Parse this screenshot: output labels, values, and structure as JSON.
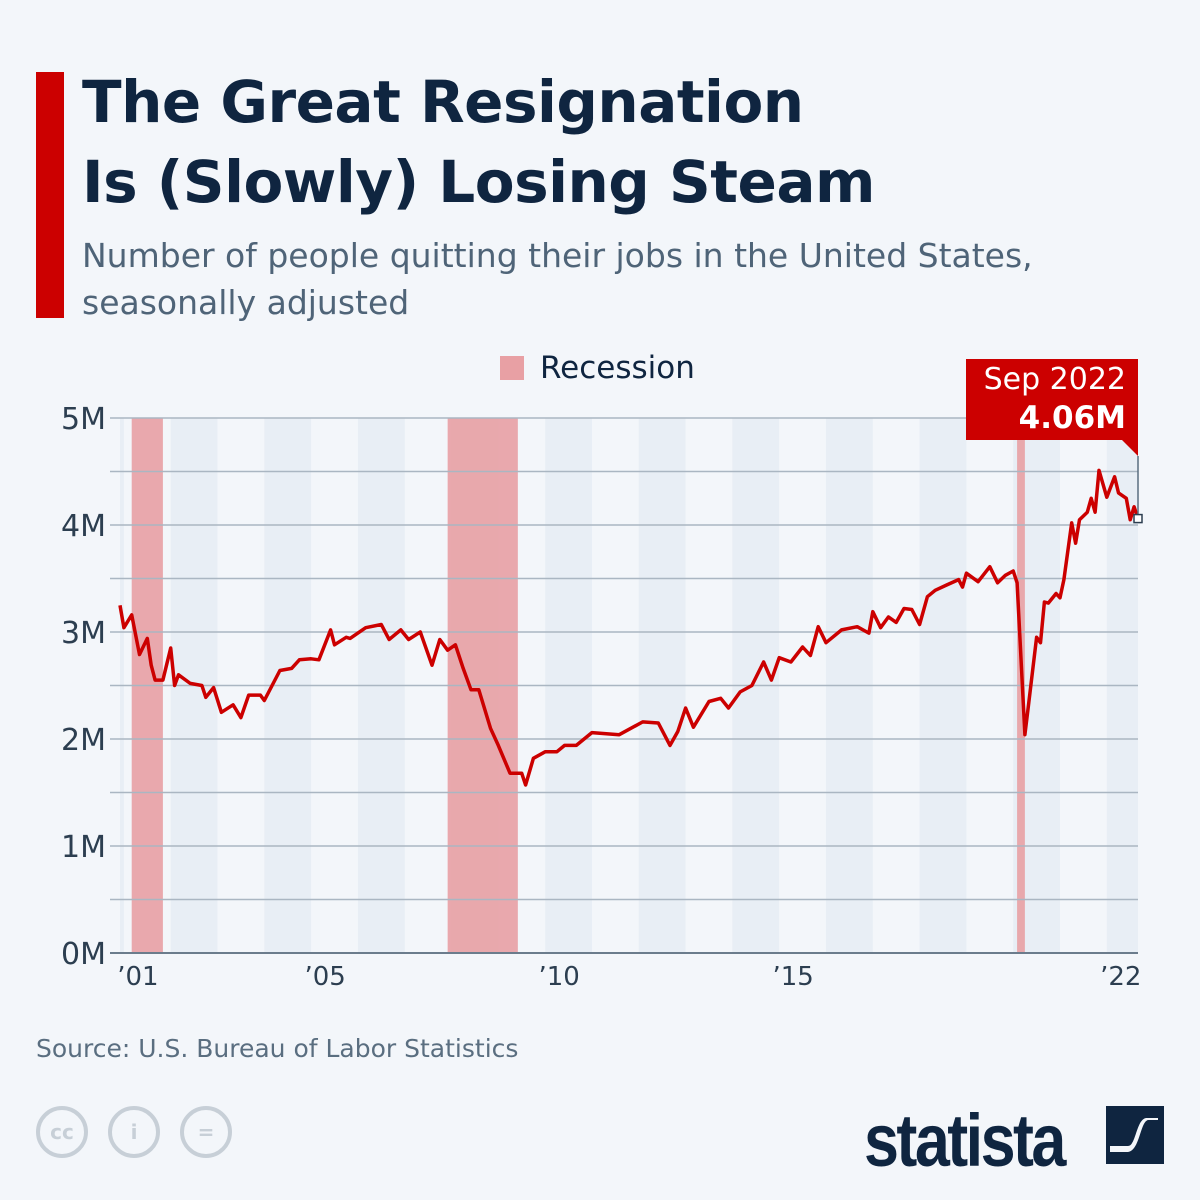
{
  "header": {
    "title_line1": "The Great Resignation",
    "title_line2": "Is (Slowly) Losing Steam",
    "subtitle_line1": "Number of people quitting their jobs in the United States,",
    "subtitle_line2": "seasonally adjusted"
  },
  "legend": {
    "recession_label": "Recession"
  },
  "callout": {
    "date": "Sep 2022",
    "value": "4.06M"
  },
  "footer": {
    "source": "Source: U.S. Bureau of Labor Statistics",
    "brand": "statista",
    "license_icons": [
      "cc-icon",
      "attribution-icon",
      "no-derivatives-icon"
    ]
  },
  "colors": {
    "accent": "#cc0000",
    "line": "#cc0000",
    "recession": "#e8a0a4",
    "title": "#0f2540",
    "stripe": "#e8eef5"
  },
  "chart_data": {
    "type": "line",
    "ylim": [
      0,
      5
    ],
    "yunit": "M",
    "yticks": [
      {
        "v": 0,
        "label": "0M"
      },
      {
        "v": 1,
        "label": "1M"
      },
      {
        "v": 2,
        "label": "2M"
      },
      {
        "v": 3,
        "label": "3M"
      },
      {
        "v": 4,
        "label": "4M"
      },
      {
        "v": 5,
        "label": "5M"
      }
    ],
    "xrange": [
      "2000-12",
      "2022-09"
    ],
    "xticks": [
      {
        "date": "2001-01",
        "label": "’01"
      },
      {
        "date": "2005-01",
        "label": "’05"
      },
      {
        "date": "2010-01",
        "label": "’10"
      },
      {
        "date": "2015-01",
        "label": "’15"
      },
      {
        "date": "2022-01",
        "label": "’22"
      }
    ],
    "grid": true,
    "alternate_year_shading": true,
    "legend_placement": "top",
    "recessions": [
      [
        "2001-03",
        "2001-11"
      ],
      [
        "2007-12",
        "2009-06"
      ],
      [
        "2020-02",
        "2020-04"
      ]
    ],
    "points": [
      [
        "2000-12",
        3.25
      ],
      [
        "2001-01",
        3.04
      ],
      [
        "2001-03",
        3.16
      ],
      [
        "2001-05",
        2.79
      ],
      [
        "2001-07",
        2.94
      ],
      [
        "2001-08",
        2.69
      ],
      [
        "2001-09",
        2.55
      ],
      [
        "2001-11",
        2.55
      ],
      [
        "2002-01",
        2.85
      ],
      [
        "2002-02",
        2.5
      ],
      [
        "2002-03",
        2.6
      ],
      [
        "2002-06",
        2.52
      ],
      [
        "2002-09",
        2.5
      ],
      [
        "2002-10",
        2.39
      ],
      [
        "2002-12",
        2.48
      ],
      [
        "2003-02",
        2.25
      ],
      [
        "2003-05",
        2.32
      ],
      [
        "2003-07",
        2.2
      ],
      [
        "2003-09",
        2.41
      ],
      [
        "2003-12",
        2.41
      ],
      [
        "2004-01",
        2.36
      ],
      [
        "2004-05",
        2.64
      ],
      [
        "2004-08",
        2.66
      ],
      [
        "2004-10",
        2.74
      ],
      [
        "2005-01",
        2.75
      ],
      [
        "2005-03",
        2.74
      ],
      [
        "2005-06",
        3.02
      ],
      [
        "2005-07",
        2.88
      ],
      [
        "2005-10",
        2.95
      ],
      [
        "2005-11",
        2.94
      ],
      [
        "2006-03",
        3.04
      ],
      [
        "2006-07",
        3.07
      ],
      [
        "2006-09",
        2.93
      ],
      [
        "2006-12",
        3.02
      ],
      [
        "2007-02",
        2.93
      ],
      [
        "2007-05",
        3.0
      ],
      [
        "2007-08",
        2.69
      ],
      [
        "2007-10",
        2.93
      ],
      [
        "2007-12",
        2.83
      ],
      [
        "2008-02",
        2.88
      ],
      [
        "2008-04",
        2.66
      ],
      [
        "2008-06",
        2.46
      ],
      [
        "2008-08",
        2.46
      ],
      [
        "2008-11",
        2.1
      ],
      [
        "2009-01",
        1.94
      ],
      [
        "2009-04",
        1.68
      ],
      [
        "2009-07",
        1.68
      ],
      [
        "2009-08",
        1.57
      ],
      [
        "2009-10",
        1.82
      ],
      [
        "2010-01",
        1.88
      ],
      [
        "2010-04",
        1.88
      ],
      [
        "2010-06",
        1.94
      ],
      [
        "2010-09",
        1.94
      ],
      [
        "2011-01",
        2.06
      ],
      [
        "2011-08",
        2.04
      ],
      [
        "2012-02",
        2.16
      ],
      [
        "2012-06",
        2.15
      ],
      [
        "2012-09",
        1.94
      ],
      [
        "2012-11",
        2.07
      ],
      [
        "2013-01",
        2.29
      ],
      [
        "2013-03",
        2.11
      ],
      [
        "2013-07",
        2.35
      ],
      [
        "2013-10",
        2.38
      ],
      [
        "2013-12",
        2.29
      ],
      [
        "2014-03",
        2.44
      ],
      [
        "2014-06",
        2.5
      ],
      [
        "2014-09",
        2.72
      ],
      [
        "2014-11",
        2.55
      ],
      [
        "2015-01",
        2.76
      ],
      [
        "2015-04",
        2.72
      ],
      [
        "2015-07",
        2.86
      ],
      [
        "2015-09",
        2.78
      ],
      [
        "2015-11",
        3.05
      ],
      [
        "2016-01",
        2.9
      ],
      [
        "2016-05",
        3.02
      ],
      [
        "2016-09",
        3.05
      ],
      [
        "2016-12",
        2.99
      ],
      [
        "2017-01",
        3.19
      ],
      [
        "2017-03",
        3.04
      ],
      [
        "2017-05",
        3.14
      ],
      [
        "2017-07",
        3.09
      ],
      [
        "2017-09",
        3.22
      ],
      [
        "2017-11",
        3.21
      ],
      [
        "2018-01",
        3.07
      ],
      [
        "2018-03",
        3.33
      ],
      [
        "2018-05",
        3.39
      ],
      [
        "2018-08",
        3.44
      ],
      [
        "2018-11",
        3.49
      ],
      [
        "2018-12",
        3.42
      ],
      [
        "2019-01",
        3.55
      ],
      [
        "2019-04",
        3.47
      ],
      [
        "2019-07",
        3.61
      ],
      [
        "2019-09",
        3.46
      ],
      [
        "2019-11",
        3.53
      ],
      [
        "2020-01",
        3.57
      ],
      [
        "2020-02",
        3.46
      ],
      [
        "2020-04",
        2.04
      ],
      [
        "2020-05",
        2.34
      ],
      [
        "2020-07",
        2.95
      ],
      [
        "2020-08",
        2.9
      ],
      [
        "2020-09",
        3.28
      ],
      [
        "2020-10",
        3.27
      ],
      [
        "2020-12",
        3.36
      ],
      [
        "2021-01",
        3.32
      ],
      [
        "2021-02",
        3.49
      ],
      [
        "2021-04",
        4.02
      ],
      [
        "2021-05",
        3.83
      ],
      [
        "2021-06",
        4.05
      ],
      [
        "2021-08",
        4.12
      ],
      [
        "2021-09",
        4.25
      ],
      [
        "2021-10",
        4.12
      ],
      [
        "2021-11",
        4.51
      ],
      [
        "2022-01",
        4.26
      ],
      [
        "2022-03",
        4.45
      ],
      [
        "2022-04",
        4.3
      ],
      [
        "2022-06",
        4.25
      ],
      [
        "2022-07",
        4.05
      ],
      [
        "2022-08",
        4.17
      ],
      [
        "2022-09",
        4.06
      ]
    ]
  }
}
